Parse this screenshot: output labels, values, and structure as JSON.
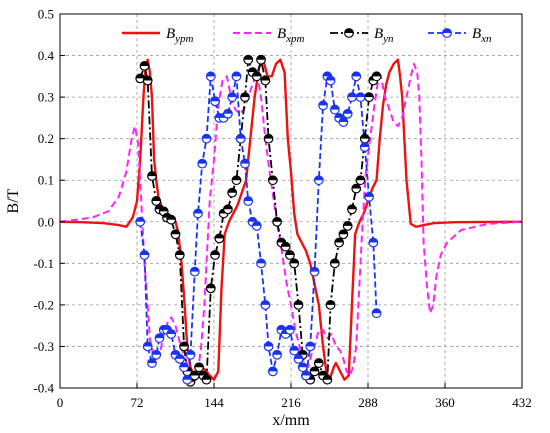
{
  "chart_data": {
    "type": "line",
    "xlabel": "x/mm",
    "ylabel": "B/T",
    "xlim": [
      0,
      432
    ],
    "ylim": [
      -0.4,
      0.5
    ],
    "xticks": [
      0,
      72,
      144,
      216,
      288,
      360,
      432
    ],
    "xtick_labels": [
      "0",
      "72",
      "144",
      "216",
      "288",
      "360",
      "432"
    ],
    "yticks": [
      -0.4,
      -0.3,
      -0.2,
      -0.1,
      0.0,
      0.1,
      0.2,
      0.3,
      0.4,
      0.5
    ],
    "ytick_labels": [
      "-0.4",
      "-0.3",
      "-0.2",
      "-0.1",
      "0.0",
      "0.1",
      "0.2",
      "0.3",
      "0.4",
      "0.5"
    ],
    "grid": "dashed vertical and horizontal",
    "legend_position": "top",
    "colors": {
      "ypm": "#ee1111",
      "xpm": "#ff22ff",
      "yn": "#000000",
      "xn": "#1a33ee"
    },
    "series": [
      {
        "key": "ypm",
        "name_main": "B",
        "name_sub": "ypm",
        "style": "solid",
        "points": [
          [
            0,
            0
          ],
          [
            20,
            -0.001
          ],
          [
            40,
            -0.003
          ],
          [
            55,
            -0.008
          ],
          [
            62,
            -0.012
          ],
          [
            68,
            0.01
          ],
          [
            72,
            0.05
          ],
          [
            75,
            0.15
          ],
          [
            78,
            0.3
          ],
          [
            80,
            0.37
          ],
          [
            82,
            0.39
          ],
          [
            84,
            0.36
          ],
          [
            86,
            0.3
          ],
          [
            88,
            0.15
          ],
          [
            90,
            0.1
          ],
          [
            92,
            0.06
          ],
          [
            96,
            0.03
          ],
          [
            100,
            0.02
          ],
          [
            104,
            0.01
          ],
          [
            108,
            0
          ],
          [
            110,
            -0.02
          ],
          [
            113,
            -0.08
          ],
          [
            116,
            -0.18
          ],
          [
            119,
            -0.3
          ],
          [
            122,
            -0.35
          ],
          [
            127,
            -0.38
          ],
          [
            130,
            -0.37
          ],
          [
            133,
            -0.35
          ],
          [
            137,
            -0.36
          ],
          [
            140,
            -0.37
          ],
          [
            144,
            -0.38
          ],
          [
            148,
            -0.36
          ],
          [
            151,
            -0.16
          ],
          [
            154,
            -0.03
          ],
          [
            158,
            0
          ],
          [
            162,
            0.02
          ],
          [
            166,
            0.04
          ],
          [
            170,
            0.07
          ],
          [
            174,
            0.1
          ],
          [
            178,
            0.2
          ],
          [
            182,
            0.3
          ],
          [
            186,
            0.37
          ],
          [
            190,
            0.39
          ],
          [
            194,
            0.35
          ],
          [
            198,
            0.35
          ],
          [
            202,
            0.38
          ],
          [
            206,
            0.39
          ],
          [
            210,
            0.36
          ],
          [
            213,
            0.2
          ],
          [
            216,
            0.12
          ],
          [
            219,
            0.02
          ],
          [
            222,
            -0.03
          ],
          [
            226,
            -0.05
          ],
          [
            230,
            -0.07
          ],
          [
            234,
            -0.1
          ],
          [
            238,
            -0.15
          ],
          [
            242,
            -0.2
          ],
          [
            246,
            -0.3
          ],
          [
            249,
            -0.36
          ],
          [
            252,
            -0.38
          ],
          [
            256,
            -0.35
          ],
          [
            258,
            -0.34
          ],
          [
            262,
            -0.36
          ],
          [
            266,
            -0.38
          ],
          [
            270,
            -0.37
          ],
          [
            273,
            -0.2
          ],
          [
            276,
            -0.03
          ],
          [
            280,
            0
          ],
          [
            284,
            0.02
          ],
          [
            288,
            0.05
          ],
          [
            292,
            0.08
          ],
          [
            296,
            0.1
          ],
          [
            299,
            0.2
          ],
          [
            302,
            0.28
          ],
          [
            305,
            0.33
          ],
          [
            308,
            0.36
          ],
          [
            312,
            0.38
          ],
          [
            316,
            0.39
          ],
          [
            318,
            0.35
          ],
          [
            320,
            0.3
          ],
          [
            322,
            0.2
          ],
          [
            324,
            0.1
          ],
          [
            328,
            -0.005
          ],
          [
            333,
            -0.012
          ],
          [
            340,
            -0.008
          ],
          [
            350,
            -0.003
          ],
          [
            370,
            -0.001
          ],
          [
            432,
            0
          ]
        ]
      },
      {
        "key": "xpm",
        "name_main": "B",
        "name_sub": "xpm",
        "style": "dashed",
        "points": [
          [
            0,
            0
          ],
          [
            30,
            0.01
          ],
          [
            45,
            0.025
          ],
          [
            55,
            0.06
          ],
          [
            62,
            0.12
          ],
          [
            67,
            0.2
          ],
          [
            70,
            0.23
          ],
          [
            73,
            0.19
          ],
          [
            76,
            0.05
          ],
          [
            79,
            -0.1
          ],
          [
            82,
            -0.2
          ],
          [
            84,
            -0.28
          ],
          [
            87,
            -0.32
          ],
          [
            90,
            -0.33
          ],
          [
            94,
            -0.31
          ],
          [
            97,
            -0.27
          ],
          [
            101,
            -0.24
          ],
          [
            104,
            -0.23
          ],
          [
            108,
            -0.25
          ],
          [
            113,
            -0.3
          ],
          [
            117,
            -0.33
          ],
          [
            121,
            -0.36
          ],
          [
            125,
            -0.38
          ],
          [
            129,
            -0.36
          ],
          [
            132,
            -0.3
          ],
          [
            135,
            -0.2
          ],
          [
            137,
            -0.1
          ],
          [
            140,
            0.05
          ],
          [
            144,
            0.15
          ],
          [
            148,
            0.28
          ],
          [
            152,
            0.34
          ],
          [
            156,
            0.35
          ],
          [
            160,
            0.3
          ],
          [
            164,
            0.27
          ],
          [
            168,
            0.26
          ],
          [
            172,
            0.27
          ],
          [
            176,
            0.3
          ],
          [
            180,
            0.33
          ],
          [
            184,
            0.36
          ],
          [
            188,
            0.3
          ],
          [
            192,
            0.2
          ],
          [
            196,
            0.12
          ],
          [
            200,
            0.05
          ],
          [
            204,
            -0.02
          ],
          [
            208,
            -0.08
          ],
          [
            212,
            -0.15
          ],
          [
            216,
            -0.2
          ],
          [
            220,
            -0.26
          ],
          [
            224,
            -0.3
          ],
          [
            228,
            -0.34
          ],
          [
            232,
            -0.35
          ],
          [
            235,
            -0.32
          ],
          [
            238,
            -0.3
          ],
          [
            242,
            -0.26
          ],
          [
            246,
            -0.26
          ],
          [
            250,
            -0.28
          ],
          [
            254,
            -0.27
          ],
          [
            258,
            -0.3
          ],
          [
            262,
            -0.31
          ],
          [
            265,
            -0.33
          ],
          [
            268,
            -0.36
          ],
          [
            271,
            -0.37
          ],
          [
            274,
            -0.35
          ],
          [
            277,
            -0.3
          ],
          [
            279,
            -0.2
          ],
          [
            281,
            -0.1
          ],
          [
            283,
            0
          ],
          [
            286,
            0.12
          ],
          [
            290,
            0.2
          ],
          [
            294,
            0.28
          ],
          [
            298,
            0.35
          ],
          [
            300,
            0.35
          ],
          [
            304,
            0.3
          ],
          [
            308,
            0.27
          ],
          [
            312,
            0.24
          ],
          [
            316,
            0.23
          ],
          [
            320,
            0.25
          ],
          [
            324,
            0.3
          ],
          [
            328,
            0.35
          ],
          [
            331,
            0.38
          ],
          [
            334,
            0.36
          ],
          [
            336,
            0.3
          ],
          [
            338,
            0.15
          ],
          [
            340,
            -0.05
          ],
          [
            343,
            -0.15
          ],
          [
            346,
            -0.22
          ],
          [
            349,
            -0.2
          ],
          [
            352,
            -0.13
          ],
          [
            356,
            -0.08
          ],
          [
            362,
            -0.05
          ],
          [
            375,
            -0.02
          ],
          [
            400,
            -0.005
          ],
          [
            432,
            0
          ]
        ]
      },
      {
        "key": "yn",
        "name_main": "B",
        "name_sub": "yn",
        "style": "dashdot-markers",
        "points": [
          [
            75,
            0.345
          ],
          [
            79,
            0.375
          ],
          [
            82,
            0.34
          ],
          [
            86,
            0.11
          ],
          [
            90,
            0.05
          ],
          [
            93,
            0.03
          ],
          [
            97,
            0.025
          ],
          [
            100,
            0.01
          ],
          [
            104,
            0.005
          ],
          [
            108,
            -0.03
          ],
          [
            112,
            -0.08
          ],
          [
            116,
            -0.3
          ],
          [
            119,
            -0.36
          ],
          [
            122,
            -0.385
          ],
          [
            126,
            -0.37
          ],
          [
            130,
            -0.35
          ],
          [
            134,
            -0.37
          ],
          [
            137,
            -0.38
          ],
          [
            141,
            -0.16
          ],
          [
            145,
            -0.08
          ],
          [
            149,
            -0.04
          ],
          [
            153,
            0.02
          ],
          [
            157,
            0.03
          ],
          [
            161,
            0.07
          ],
          [
            165,
            0.1
          ],
          [
            169,
            0.2
          ],
          [
            173,
            0.3
          ],
          [
            176,
            0.39
          ],
          [
            180,
            0.36
          ],
          [
            184,
            0.35
          ],
          [
            188,
            0.39
          ],
          [
            192,
            0.34
          ],
          [
            195,
            0.2
          ],
          [
            199,
            0.1
          ],
          [
            203,
            0
          ],
          [
            207,
            -0.05
          ],
          [
            211,
            -0.06
          ],
          [
            215,
            -0.08
          ],
          [
            219,
            -0.1
          ],
          [
            223,
            -0.2
          ],
          [
            227,
            -0.32
          ],
          [
            230,
            -0.37
          ],
          [
            234,
            -0.38
          ],
          [
            238,
            -0.36
          ],
          [
            242,
            -0.34
          ],
          [
            246,
            -0.37
          ],
          [
            250,
            -0.38
          ],
          [
            253,
            -0.2
          ],
          [
            257,
            -0.1
          ],
          [
            261,
            -0.05
          ],
          [
            265,
            -0.03
          ],
          [
            269,
            -0.01
          ],
          [
            273,
            0.03
          ],
          [
            277,
            0.08
          ],
          [
            281,
            0.1
          ],
          [
            285,
            0.2
          ],
          [
            289,
            0.3
          ],
          [
            293,
            0.34
          ],
          [
            296,
            0.35
          ]
        ]
      },
      {
        "key": "xn",
        "name_main": "B",
        "name_sub": "xn",
        "style": "dashed-markers",
        "points": [
          [
            75,
            0
          ],
          [
            79,
            -0.08
          ],
          [
            82,
            -0.3
          ],
          [
            86,
            -0.34
          ],
          [
            90,
            -0.32
          ],
          [
            93,
            -0.28
          ],
          [
            97,
            -0.26
          ],
          [
            100,
            -0.26
          ],
          [
            104,
            -0.27
          ],
          [
            108,
            -0.32
          ],
          [
            112,
            -0.33
          ],
          [
            116,
            -0.35
          ],
          [
            119,
            -0.38
          ],
          [
            122,
            -0.32
          ],
          [
            126,
            -0.12
          ],
          [
            129,
            0.02
          ],
          [
            133,
            0.14
          ],
          [
            137,
            0.2
          ],
          [
            141,
            0.35
          ],
          [
            145,
            0.29
          ],
          [
            149,
            0.25
          ],
          [
            153,
            0.25
          ],
          [
            157,
            0.26
          ],
          [
            161,
            0.3
          ],
          [
            165,
            0.35
          ],
          [
            169,
            0.2
          ],
          [
            173,
            0.14
          ],
          [
            176,
            0.05
          ],
          [
            180,
            0
          ],
          [
            184,
            -0.01
          ],
          [
            188,
            -0.1
          ],
          [
            192,
            -0.2
          ],
          [
            195,
            -0.3
          ],
          [
            199,
            -0.36
          ],
          [
            203,
            -0.32
          ],
          [
            207,
            -0.26
          ],
          [
            211,
            -0.27
          ],
          [
            215,
            -0.26
          ],
          [
            219,
            -0.31
          ],
          [
            223,
            -0.33
          ],
          [
            227,
            -0.35
          ],
          [
            230,
            -0.37
          ],
          [
            234,
            -0.3
          ],
          [
            238,
            -0.12
          ],
          [
            242,
            0.1
          ],
          [
            246,
            0.28
          ],
          [
            250,
            0.35
          ],
          [
            253,
            0.34
          ],
          [
            257,
            0.27
          ],
          [
            261,
            0.25
          ],
          [
            265,
            0.24
          ],
          [
            269,
            0.26
          ],
          [
            273,
            0.3
          ],
          [
            277,
            0.35
          ],
          [
            281,
            0.3
          ],
          [
            285,
            0.18
          ],
          [
            289,
            0.06
          ],
          [
            293,
            -0.05
          ],
          [
            296,
            -0.22
          ]
        ]
      }
    ]
  }
}
